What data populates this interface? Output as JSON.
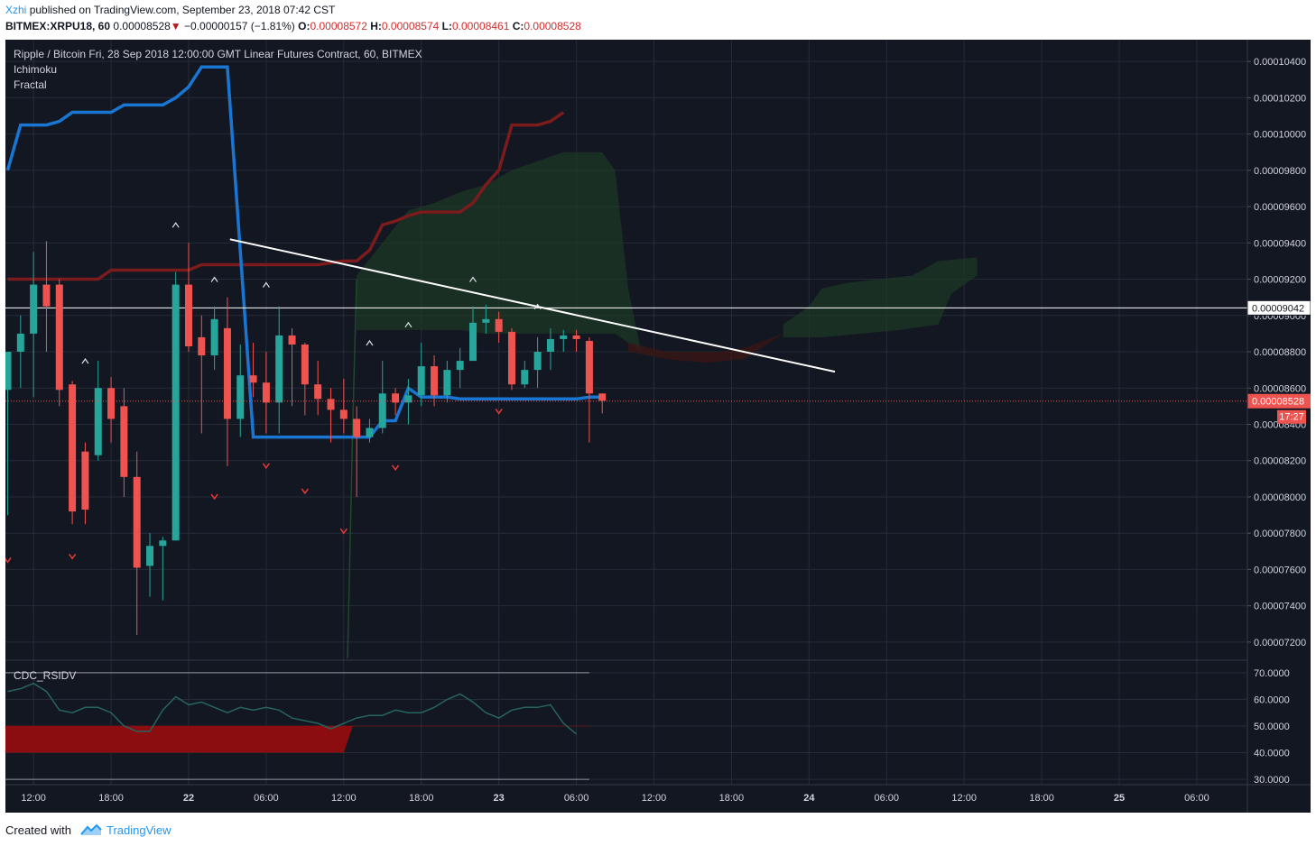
{
  "header": {
    "author": "Xzhi",
    "published_text": "published on TradingView.com, September 23, 2018 07:42 CST",
    "symbol": "BITMEX:XRPU18, 60",
    "last_price": "0.00008528",
    "change_arrow": "▼",
    "change": "−0.00000157 (−1.81%)",
    "open_label": "O:",
    "open": "0.00008572",
    "high_label": "H:",
    "high": "0.00008574",
    "low_label": "L:",
    "low": "0.00008461",
    "close_label": "C:",
    "close": "0.00008528"
  },
  "legend": {
    "title": "Ripple / Bitcoin Fri, 28 Sep 2018 12:00:00 GMT Linear Futures Contract, 60, BITMEX",
    "indicator_1": "Ichimoku",
    "indicator_2": "Fractal",
    "sub_pane_title": "CDC_RSIDV"
  },
  "price_axis": {
    "ticks": [
      "0.00010400",
      "0.00010200",
      "0.00010000",
      "0.00009800",
      "0.00009600",
      "0.00009400",
      "0.00009200",
      "0.00009000",
      "0.00008800",
      "0.00008600",
      "0.00008400",
      "0.00008200",
      "0.00008000",
      "0.00007800",
      "0.00007600",
      "0.00007400",
      "0.00007200"
    ],
    "horizontal_line_label": "0.00009042",
    "current_price_label": "0.00008528",
    "countdown_label": "17:27"
  },
  "rsi_axis": {
    "ticks": [
      "70.0000",
      "60.0000",
      "50.0000",
      "40.0000",
      "30.0000"
    ]
  },
  "time_axis": {
    "ticks": [
      "12:00",
      "18:00",
      "22",
      "06:00",
      "12:00",
      "18:00",
      "23",
      "06:00",
      "12:00",
      "18:00",
      "24",
      "06:00",
      "12:00",
      "18:00",
      "25",
      "06:00"
    ]
  },
  "footer": {
    "created_with": "Created with",
    "brand": "TradingView"
  },
  "colors": {
    "background": "#131722",
    "up_candle": "#26a69a",
    "down_candle": "#ef5350",
    "kijun_line": "#1976d2",
    "leading_span": "#7b1b1b",
    "cloud": "#1c3a24",
    "trendline": "#ffffff",
    "rsi_line": "#26645f",
    "rsi_fill": "#8b0d10",
    "author": "#2196f3"
  },
  "chart_data": {
    "type": "candlestick",
    "symbol": "BITMEX:XRPU18",
    "interval": "60",
    "price_range": [
      7.11e-05,
      0.0001052
    ],
    "candles": [
      [
        8.59e-05,
        8.8e-05,
        7.9e-05,
        8.8e-05
      ],
      [
        8.8e-05,
        9e-05,
        8.6e-05,
        8.9e-05
      ],
      [
        8.9e-05,
        9.35e-05,
        8.55e-05,
        9.17e-05
      ],
      [
        9.17e-05,
        9.41e-05,
        8.8e-05,
        9.05e-05
      ],
      [
        9.17e-05,
        9.2e-05,
        8.5e-05,
        8.59e-05
      ],
      [
        8.62e-05,
        8.64e-05,
        7.85e-05,
        7.92e-05
      ],
      [
        8.25e-05,
        8.3e-05,
        7.85e-05,
        7.93e-05
      ],
      [
        8.23e-05,
        8.75e-05,
        8.2e-05,
        8.6e-05
      ],
      [
        8.6e-05,
        8.66e-05,
        8.3e-05,
        8.43e-05
      ],
      [
        8.5e-05,
        8.6e-05,
        8e-05,
        8.11e-05
      ],
      [
        8.11e-05,
        8.25e-05,
        7.24e-05,
        7.61e-05
      ],
      [
        7.62e-05,
        7.8e-05,
        7.45e-05,
        7.73e-05
      ],
      [
        7.73e-05,
        7.78e-05,
        7.43e-05,
        7.76e-05
      ],
      [
        7.76e-05,
        9.24e-05,
        7.76e-05,
        9.17e-05
      ],
      [
        9.17e-05,
        9.4e-05,
        8.8e-05,
        8.83e-05
      ],
      [
        8.88e-05,
        9e-05,
        8.35e-05,
        8.78e-05
      ],
      [
        8.78e-05,
        9.05e-05,
        8.7e-05,
        8.98e-05
      ],
      [
        8.93e-05,
        9.1e-05,
        8.17e-05,
        8.43e-05
      ],
      [
        8.43e-05,
        8.84e-05,
        8.33e-05,
        8.67e-05
      ],
      [
        8.67e-05,
        8.85e-05,
        8.55e-05,
        8.63e-05
      ],
      [
        8.63e-05,
        8.8e-05,
        8.35e-05,
        8.52e-05
      ],
      [
        8.52e-05,
        9.05e-05,
        8.35e-05,
        8.89e-05
      ],
      [
        8.89e-05,
        8.93e-05,
        8.5e-05,
        8.84e-05
      ],
      [
        8.84e-05,
        8.85e-05,
        8.45e-05,
        8.62e-05
      ],
      [
        8.62e-05,
        8.75e-05,
        8.45e-05,
        8.54e-05
      ],
      [
        8.54e-05,
        8.6e-05,
        8.3e-05,
        8.48e-05
      ],
      [
        8.48e-05,
        8.65e-05,
        8.35e-05,
        8.43e-05
      ],
      [
        8.43e-05,
        8.5e-05,
        8e-05,
        8.33e-05
      ],
      [
        8.33e-05,
        8.43e-05,
        8.3e-05,
        8.38e-05
      ],
      [
        8.38e-05,
        8.75e-05,
        8.35e-05,
        8.57e-05
      ],
      [
        8.57e-05,
        8.6e-05,
        8.45e-05,
        8.52e-05
      ],
      [
        8.52e-05,
        8.65e-05,
        8.4e-05,
        8.56e-05
      ],
      [
        8.56e-05,
        8.85e-05,
        8.5e-05,
        8.72e-05
      ],
      [
        8.72e-05,
        8.78e-05,
        8.5e-05,
        8.56e-05
      ],
      [
        8.56e-05,
        8.75e-05,
        8.52e-05,
        8.7e-05
      ],
      [
        8.7e-05,
        8.82e-05,
        8.6e-05,
        8.75e-05
      ],
      [
        8.75e-05,
        9.05e-05,
        8.75e-05,
        8.96e-05
      ],
      [
        8.96e-05,
        9.06e-05,
        8.9e-05,
        8.98e-05
      ],
      [
        8.98e-05,
        9.02e-05,
        8.85e-05,
        8.91e-05
      ],
      [
        8.91e-05,
        8.93e-05,
        8.59e-05,
        8.62e-05
      ],
      [
        8.62e-05,
        8.75e-05,
        8.6e-05,
        8.7e-05
      ],
      [
        8.7e-05,
        8.88e-05,
        8.6e-05,
        8.8e-05
      ],
      [
        8.8e-05,
        8.93e-05,
        8.7e-05,
        8.87e-05
      ],
      [
        8.87e-05,
        8.92e-05,
        8.8e-05,
        8.89e-05
      ],
      [
        8.89e-05,
        8.92e-05,
        8.8e-05,
        8.87e-05
      ],
      [
        8.86e-05,
        8.88e-05,
        8.3e-05,
        8.57e-05
      ],
      [
        8.57e-05,
        8.57e-05,
        8.46e-05,
        8.53e-05
      ]
    ],
    "kijun_sen": [
      9.8e-05,
      0.0001005,
      0.0001005,
      0.0001005,
      0.0001007,
      0.0001012,
      0.0001012,
      0.0001012,
      0.0001012,
      0.0001016,
      0.0001016,
      0.0001016,
      0.0001016,
      0.000102,
      0.0001026,
      0.0001037,
      0.0001037,
      0.0001037,
      9.35e-05,
      8.33e-05,
      8.33e-05,
      8.33e-05,
      8.33e-05,
      8.33e-05,
      8.33e-05,
      8.33e-05,
      8.33e-05,
      8.33e-05,
      8.33e-05,
      8.42e-05,
      8.42e-05,
      8.6e-05,
      8.55e-05,
      8.55e-05,
      8.55e-05,
      8.54e-05,
      8.54e-05,
      8.54e-05,
      8.54e-05,
      8.54e-05,
      8.54e-05,
      8.54e-05,
      8.54e-05,
      8.54e-05,
      8.54e-05,
      8.55e-05,
      8.55e-05
    ],
    "senkou_span_b": [
      9.2e-05,
      9.2e-05,
      9.2e-05,
      9.2e-05,
      9.2e-05,
      9.2e-05,
      9.2e-05,
      9.2e-05,
      9.25e-05,
      9.25e-05,
      9.25e-05,
      9.25e-05,
      9.25e-05,
      9.25e-05,
      9.25e-05,
      9.28e-05,
      9.28e-05,
      9.28e-05,
      9.28e-05,
      9.28e-05,
      9.28e-05,
      9.28e-05,
      9.28e-05,
      9.28e-05,
      9.28e-05,
      9.29e-05,
      9.3e-05,
      9.3e-05,
      9.36e-05,
      9.5e-05,
      9.52e-05,
      9.55e-05,
      9.57e-05,
      9.57e-05,
      9.57e-05,
      9.57e-05,
      9.62e-05,
      9.72e-05,
      9.8e-05,
      0.0001005,
      0.0001005,
      0.0001005,
      0.0001007,
      0.0001012
    ],
    "trendline": {
      "from": [
        17.2,
        9.42e-05
      ],
      "to": [
        64.0,
        8.69e-05
      ]
    },
    "horizontal_line": 9.042e-05,
    "current_price": 8.528e-05,
    "fractals_up": [
      [
        6,
        8.75e-05
      ],
      [
        13,
        9.5e-05
      ],
      [
        16,
        9.2e-05
      ],
      [
        20,
        9.17e-05
      ],
      [
        28,
        8.85e-05
      ],
      [
        31,
        8.95e-05
      ],
      [
        36,
        9.2e-05
      ],
      [
        41,
        9.05e-05
      ]
    ],
    "fractals_down": [
      [
        0,
        7.65e-05
      ],
      [
        5,
        7.67e-05
      ],
      [
        16,
        8e-05
      ],
      [
        20,
        8.17e-05
      ],
      [
        23,
        8.03e-05
      ],
      [
        26,
        7.81e-05
      ],
      [
        30,
        8.16e-05
      ],
      [
        38,
        8.47e-05
      ]
    ],
    "rsi": {
      "range": [
        28,
        72
      ],
      "values": [
        63,
        64,
        66,
        63,
        56,
        55,
        57,
        57,
        55,
        50,
        48,
        48,
        56,
        61,
        58,
        59,
        57,
        55,
        57,
        56,
        57,
        56,
        53,
        52,
        51,
        49,
        51,
        53,
        54,
        54,
        56,
        55,
        55,
        57,
        60,
        62,
        59,
        55,
        53,
        56,
        57,
        57,
        58,
        51,
        47
      ],
      "fill_level": 50,
      "fill_bottom": 40,
      "fill_until": 26
    }
  }
}
